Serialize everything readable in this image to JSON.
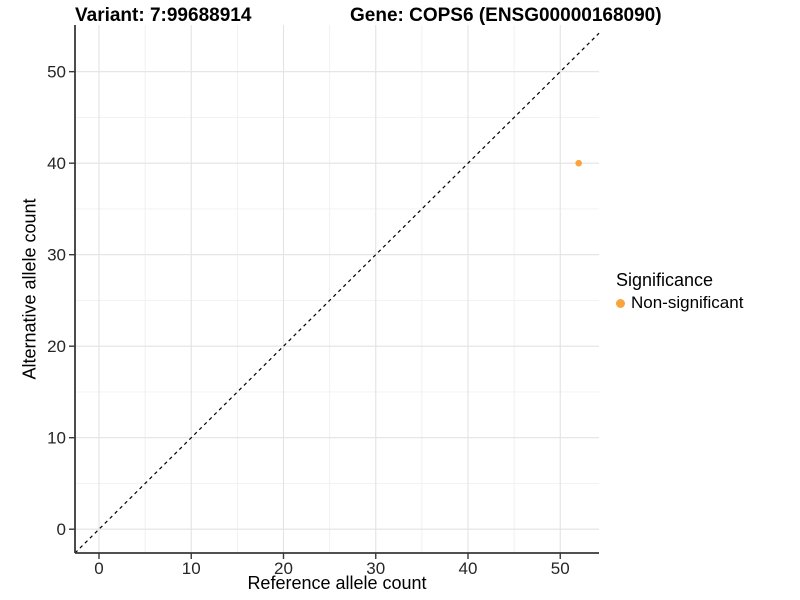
{
  "titles": {
    "variant": "Variant: 7:99688914",
    "gene": "Gene: COPS6 (ENSG00000168090)"
  },
  "chart_data": {
    "type": "scatter",
    "title": "Variant: 7:99688914    Gene: COPS6 (ENSG00000168090)",
    "xlabel": "Reference allele count",
    "ylabel": "Alternative allele count",
    "xlim": [
      -2.6,
      54.2
    ],
    "ylim": [
      -2.6,
      55.1
    ],
    "xticks": [
      0,
      10,
      20,
      30,
      40,
      50
    ],
    "yticks": [
      0,
      10,
      20,
      30,
      40,
      50
    ],
    "xticks_minor": [
      5,
      15,
      25,
      35,
      45
    ],
    "yticks_minor": [
      5,
      15,
      25,
      35,
      45
    ],
    "grid": true,
    "series": [
      {
        "name": "Non-significant",
        "color": "#FAA43C",
        "points": [
          {
            "x": 52,
            "y": 40
          }
        ]
      }
    ],
    "reference_line": {
      "kind": "identity",
      "style": "dashed",
      "color": "#000000"
    },
    "legend": {
      "title": "Significance",
      "position": "right",
      "items": [
        {
          "label": "Non-significant",
          "color": "#FAA43C"
        }
      ]
    }
  },
  "style": {
    "background": "#FFFFFF",
    "grid_major": "#E3E3E3",
    "grid_minor": "#F0F0F0",
    "axis_color": "#383838",
    "tick_label_color": "#262626",
    "point_color": "#FAA43C"
  }
}
